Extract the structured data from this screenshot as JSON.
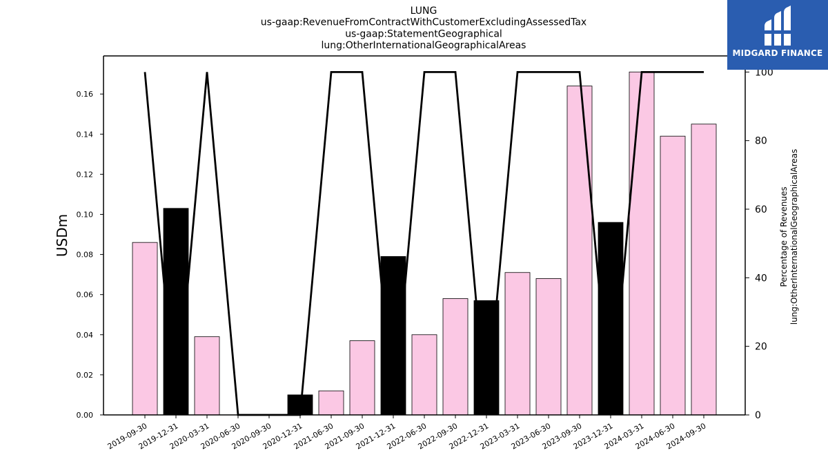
{
  "chart_data": {
    "type": "bar",
    "title_lines": [
      "LUNG",
      "us-gaap:RevenueFromContractWithCustomerExcludingAssessedTax",
      "us-gaap:StatementGeographical",
      "lung:OtherInternationalGeographicalAreas"
    ],
    "ylabel": "USDm",
    "y2label_lines": [
      "Percentage of Revenues",
      "lung:OtherInternationalGeographicalAreas"
    ],
    "categories": [
      "2019-09-30",
      "2019-12-31",
      "2020-03-31",
      "2020-06-30",
      "2020-09-30",
      "2020-12-31",
      "2021-06-30",
      "2021-09-30",
      "2021-12-31",
      "2022-06-30",
      "2022-09-30",
      "2022-12-31",
      "2023-03-31",
      "2023-06-30",
      "2023-09-30",
      "2023-12-31",
      "2024-03-31",
      "2024-06-30",
      "2024-09-30"
    ],
    "series": [
      {
        "values": [
          0.086,
          0.103,
          0.039,
          0.0,
          0.0,
          0.01,
          0.012,
          0.037,
          0.079,
          0.04,
          0.058,
          0.057,
          0.071,
          0.068,
          0.164,
          0.096,
          0.171,
          0.139,
          0.145
        ],
        "bar_colors": [
          "#fbc8e4",
          "#000000",
          "#fbc8e4",
          "#fbc8e4",
          "#fbc8e4",
          "#000000",
          "#fbc8e4",
          "#fbc8e4",
          "#000000",
          "#fbc8e4",
          "#fbc8e4",
          "#000000",
          "#fbc8e4",
          "#fbc8e4",
          "#fbc8e4",
          "#000000",
          "#fbc8e4",
          "#fbc8e4",
          "#fbc8e4"
        ],
        "axis": "left"
      },
      {
        "type": "line",
        "values": [
          100,
          0,
          100,
          0,
          0,
          0,
          100,
          100,
          0,
          100,
          100,
          0,
          100,
          100,
          100,
          0,
          100,
          100,
          100
        ],
        "color": "#000000",
        "axis": "right"
      }
    ],
    "ylim": [
      0,
      0.179
    ],
    "yticks": [
      "0.00",
      "0.02",
      "0.04",
      "0.06",
      "0.08",
      "0.10",
      "0.12",
      "0.14",
      "0.16"
    ],
    "y2lim": [
      0,
      104.7
    ],
    "y2ticks": [
      "0",
      "20",
      "40",
      "60",
      "80",
      "100"
    ],
    "grid": false
  },
  "logo": {
    "text": "MIDGARD FINANCE",
    "bg_color": "#2a5db0"
  }
}
